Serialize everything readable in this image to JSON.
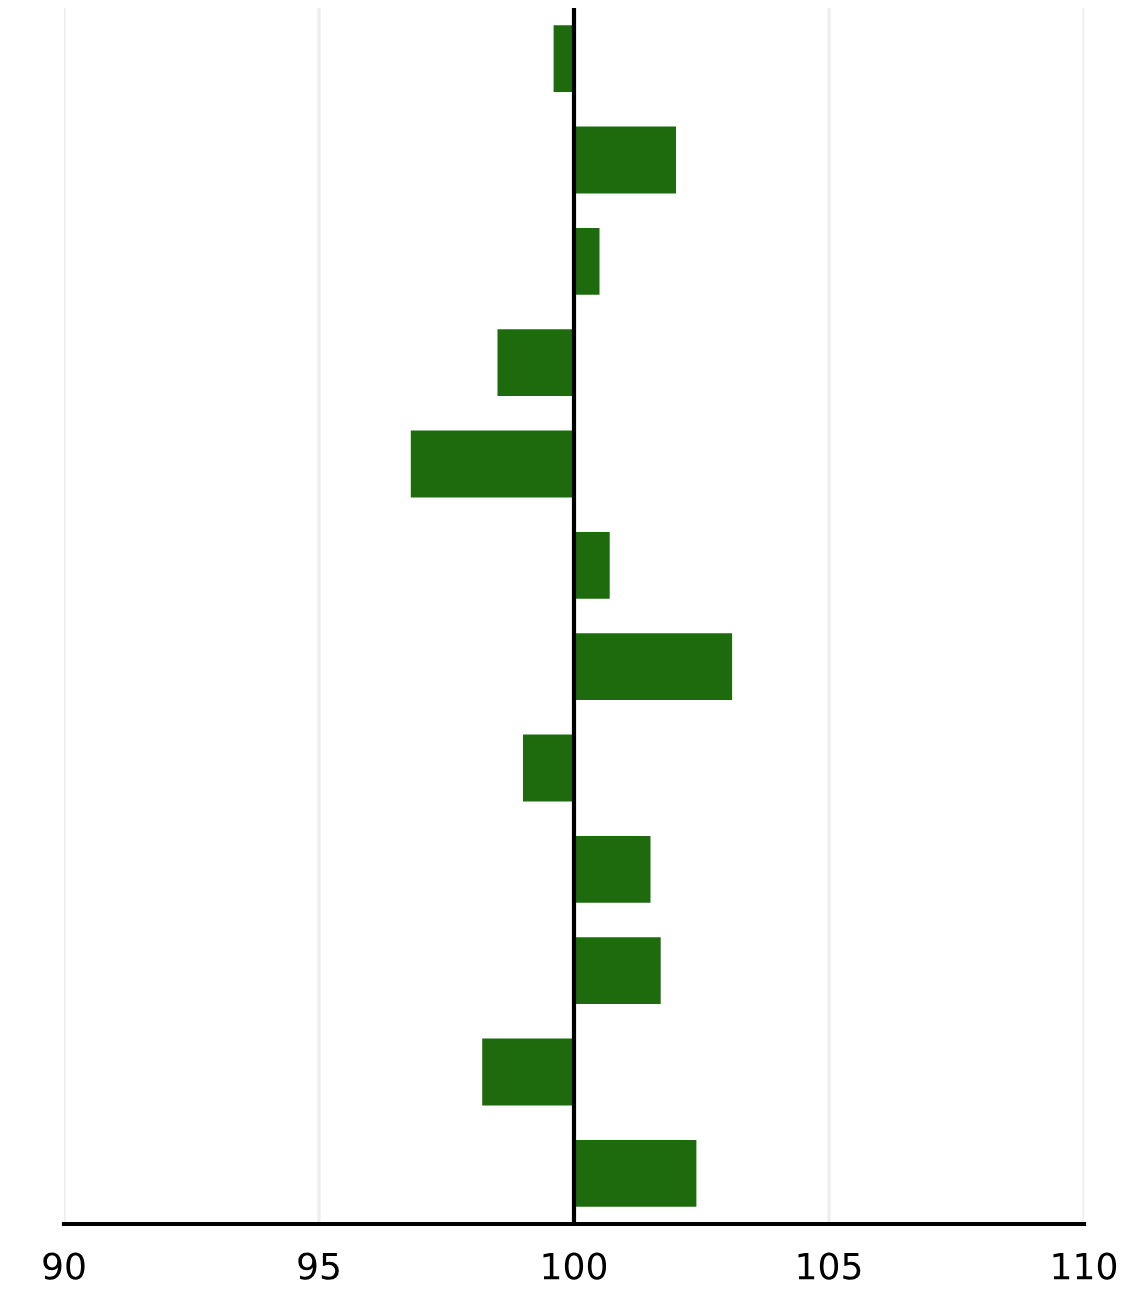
{
  "chart_data": {
    "type": "bar",
    "orientation": "horizontal",
    "categories": [
      null,
      null,
      null,
      null,
      null,
      null,
      null,
      null,
      null,
      null,
      null,
      null
    ],
    "base": [
      100,
      100,
      100,
      100,
      100,
      100,
      100,
      100,
      100,
      100,
      100,
      100
    ],
    "values": [
      -0.4,
      2.0,
      0.5,
      -1.5,
      -3.2,
      0.7,
      3.1,
      -1.0,
      1.5,
      1.7,
      -1.8,
      2.4
    ],
    "color": "#1e6b0e",
    "xlim": [
      90,
      110
    ],
    "xticks": [
      90,
      95,
      100,
      105,
      110
    ],
    "grid": "x",
    "ref_lines": [
      {
        "axis": "x",
        "value": 100,
        "color": "#000000"
      }
    ]
  }
}
